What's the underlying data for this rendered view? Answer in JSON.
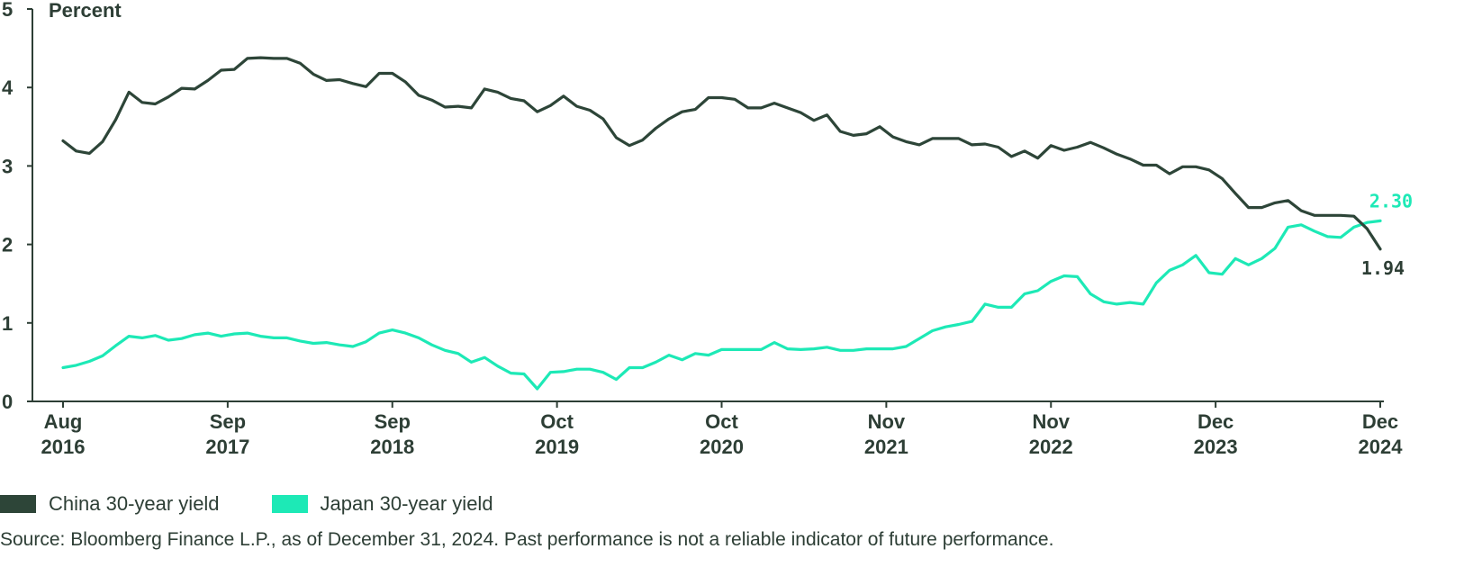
{
  "chart_data": {
    "type": "line",
    "ylabel": "Percent",
    "ylim": [
      0,
      5
    ],
    "yticks": [
      "0",
      "1",
      "2",
      "3",
      "4",
      "5"
    ],
    "xticks": [
      {
        "month": "Aug",
        "year": "2016"
      },
      {
        "month": "Sep",
        "year": "2017"
      },
      {
        "month": "Sep",
        "year": "2018"
      },
      {
        "month": "Oct",
        "year": "2019"
      },
      {
        "month": "Oct",
        "year": "2020"
      },
      {
        "month": "Nov",
        "year": "2021"
      },
      {
        "month": "Nov",
        "year": "2022"
      },
      {
        "month": "Dec",
        "year": "2023"
      },
      {
        "month": "Dec",
        "year": "2024"
      }
    ],
    "x": [
      "2016-08",
      "2016-09",
      "2016-10",
      "2016-11",
      "2016-12",
      "2017-01",
      "2017-02",
      "2017-03",
      "2017-04",
      "2017-05",
      "2017-06",
      "2017-07",
      "2017-08",
      "2017-09",
      "2017-10",
      "2017-11",
      "2017-12",
      "2018-01",
      "2018-02",
      "2018-03",
      "2018-04",
      "2018-05",
      "2018-06",
      "2018-07",
      "2018-08",
      "2018-09",
      "2018-10",
      "2018-11",
      "2018-12",
      "2019-01",
      "2019-02",
      "2019-03",
      "2019-04",
      "2019-05",
      "2019-06",
      "2019-07",
      "2019-08",
      "2019-09",
      "2019-10",
      "2019-11",
      "2019-12",
      "2020-01",
      "2020-02",
      "2020-03",
      "2020-04",
      "2020-05",
      "2020-06",
      "2020-07",
      "2020-08",
      "2020-09",
      "2020-10",
      "2020-11",
      "2020-12",
      "2021-01",
      "2021-02",
      "2021-03",
      "2021-04",
      "2021-05",
      "2021-06",
      "2021-07",
      "2021-08",
      "2021-09",
      "2021-10",
      "2021-11",
      "2021-12",
      "2022-01",
      "2022-02",
      "2022-03",
      "2022-04",
      "2022-05",
      "2022-06",
      "2022-07",
      "2022-08",
      "2022-09",
      "2022-10",
      "2022-11",
      "2022-12",
      "2023-01",
      "2023-02",
      "2023-03",
      "2023-04",
      "2023-05",
      "2023-06",
      "2023-07",
      "2023-08",
      "2023-09",
      "2023-10",
      "2023-11",
      "2023-12",
      "2024-01",
      "2024-02",
      "2024-03",
      "2024-04",
      "2024-05",
      "2024-06",
      "2024-07",
      "2024-08",
      "2024-09",
      "2024-10",
      "2024-11",
      "2024-12"
    ],
    "series": [
      {
        "name": "China 30-year yield",
        "color": "#2d4538",
        "end_label": "1.94",
        "values": [
          3.32,
          3.19,
          3.16,
          3.31,
          3.59,
          3.94,
          3.81,
          3.79,
          3.88,
          3.99,
          3.98,
          4.09,
          4.22,
          4.23,
          4.37,
          4.38,
          4.37,
          4.37,
          4.31,
          4.17,
          4.09,
          4.1,
          4.05,
          4.01,
          4.18,
          4.18,
          4.07,
          3.9,
          3.84,
          3.75,
          3.76,
          3.74,
          3.98,
          3.94,
          3.86,
          3.83,
          3.69,
          3.77,
          3.89,
          3.76,
          3.71,
          3.6,
          3.36,
          3.26,
          3.33,
          3.48,
          3.6,
          3.69,
          3.72,
          3.87,
          3.87,
          3.85,
          3.74,
          3.74,
          3.8,
          3.74,
          3.68,
          3.58,
          3.65,
          3.44,
          3.39,
          3.41,
          3.5,
          3.37,
          3.31,
          3.27,
          3.35,
          3.35,
          3.35,
          3.27,
          3.28,
          3.24,
          3.12,
          3.19,
          3.1,
          3.26,
          3.2,
          3.24,
          3.3,
          3.23,
          3.15,
          3.09,
          3.01,
          3.01,
          2.9,
          2.99,
          2.99,
          2.95,
          2.84,
          2.65,
          2.47,
          2.47,
          2.53,
          2.56,
          2.43,
          2.37,
          2.37,
          2.37,
          2.36,
          2.2,
          1.94
        ]
      },
      {
        "name": "Japan 30-year yield",
        "color": "#1de9b6",
        "end_label": "2.30",
        "values": [
          0.43,
          0.46,
          0.51,
          0.58,
          0.71,
          0.83,
          0.81,
          0.84,
          0.78,
          0.8,
          0.85,
          0.87,
          0.83,
          0.86,
          0.87,
          0.83,
          0.81,
          0.81,
          0.77,
          0.74,
          0.75,
          0.72,
          0.7,
          0.76,
          0.87,
          0.91,
          0.87,
          0.81,
          0.72,
          0.65,
          0.61,
          0.5,
          0.56,
          0.45,
          0.36,
          0.35,
          0.16,
          0.37,
          0.38,
          0.41,
          0.41,
          0.37,
          0.28,
          0.43,
          0.43,
          0.5,
          0.59,
          0.53,
          0.61,
          0.59,
          0.66,
          0.66,
          0.66,
          0.66,
          0.75,
          0.67,
          0.66,
          0.67,
          0.69,
          0.65,
          0.65,
          0.67,
          0.67,
          0.67,
          0.7,
          0.8,
          0.9,
          0.95,
          0.98,
          1.02,
          1.24,
          1.2,
          1.2,
          1.37,
          1.41,
          1.53,
          1.6,
          1.59,
          1.37,
          1.27,
          1.24,
          1.26,
          1.24,
          1.51,
          1.67,
          1.74,
          1.86,
          1.64,
          1.62,
          1.82,
          1.74,
          1.82,
          1.95,
          2.22,
          2.25,
          2.17,
          2.1,
          2.09,
          2.22,
          2.28,
          2.3
        ]
      }
    ],
    "legend_position": "bottom-left",
    "grid": false
  },
  "source_note": "Source: Bloomberg Finance L.P., as of December 31, 2024. Past performance is not a reliable indicator of future performance."
}
